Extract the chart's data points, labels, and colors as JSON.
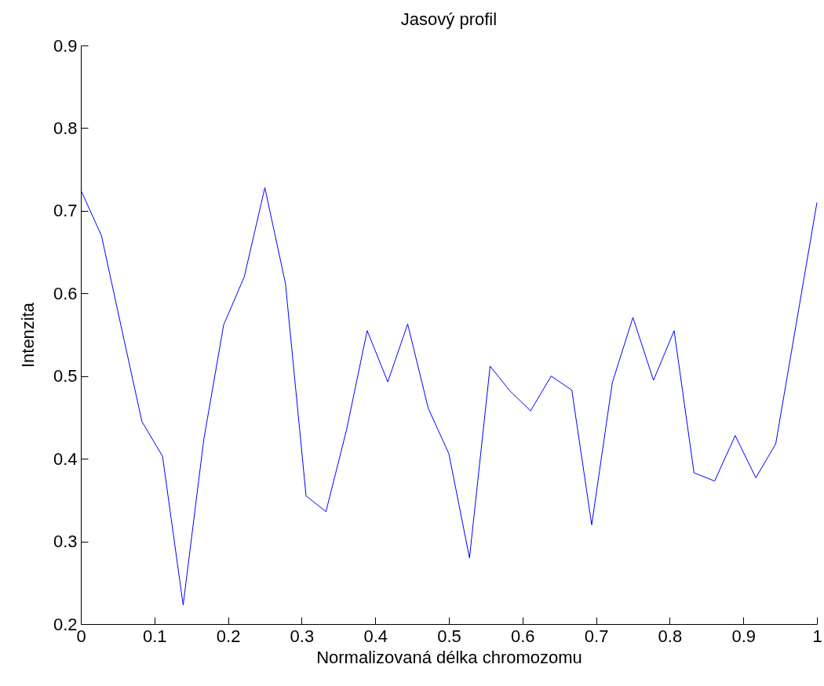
{
  "chart_data": {
    "type": "line",
    "title": "Jasový profil",
    "xlabel": "Normalizovaná délka chromozomu",
    "ylabel": "Intenzita",
    "x": [
      0,
      0.028,
      0.056,
      0.083,
      0.111,
      0.139,
      0.167,
      0.194,
      0.222,
      0.25,
      0.278,
      0.306,
      0.333,
      0.361,
      0.389,
      0.417,
      0.444,
      0.472,
      0.5,
      0.528,
      0.556,
      0.583,
      0.611,
      0.639,
      0.667,
      0.694,
      0.722,
      0.75,
      0.778,
      0.806,
      0.833,
      0.861,
      0.889,
      0.917,
      0.944,
      0.972,
      1
    ],
    "series": [
      {
        "color": "#0000ff",
        "values": [
          0.725,
          0.67,
          0.555,
          0.445,
          0.403,
          0.223,
          0.423,
          0.562,
          0.62,
          0.728,
          0.612,
          0.355,
          0.336,
          0.435,
          0.555,
          0.493,
          0.563,
          0.461,
          0.406,
          0.28,
          0.512,
          0.482,
          0.458,
          0.5,
          0.483,
          0.32,
          0.492,
          0.571,
          0.495,
          0.555,
          0.383,
          0.373,
          0.428,
          0.377,
          0.418,
          0.564,
          0.71
        ]
      }
    ],
    "xlim": [
      0,
      1
    ],
    "xticks": [
      0,
      0.1,
      0.2,
      0.3,
      0.4,
      0.5,
      0.6,
      0.7,
      0.8,
      0.9,
      1
    ],
    "ylim": [
      0.2,
      0.9
    ],
    "yticks": [
      0.2,
      0.3,
      0.4,
      0.5,
      0.6,
      0.7,
      0.8,
      0.9
    ],
    "grid": false,
    "legend": false,
    "marker": "none",
    "line_style": "solid"
  }
}
